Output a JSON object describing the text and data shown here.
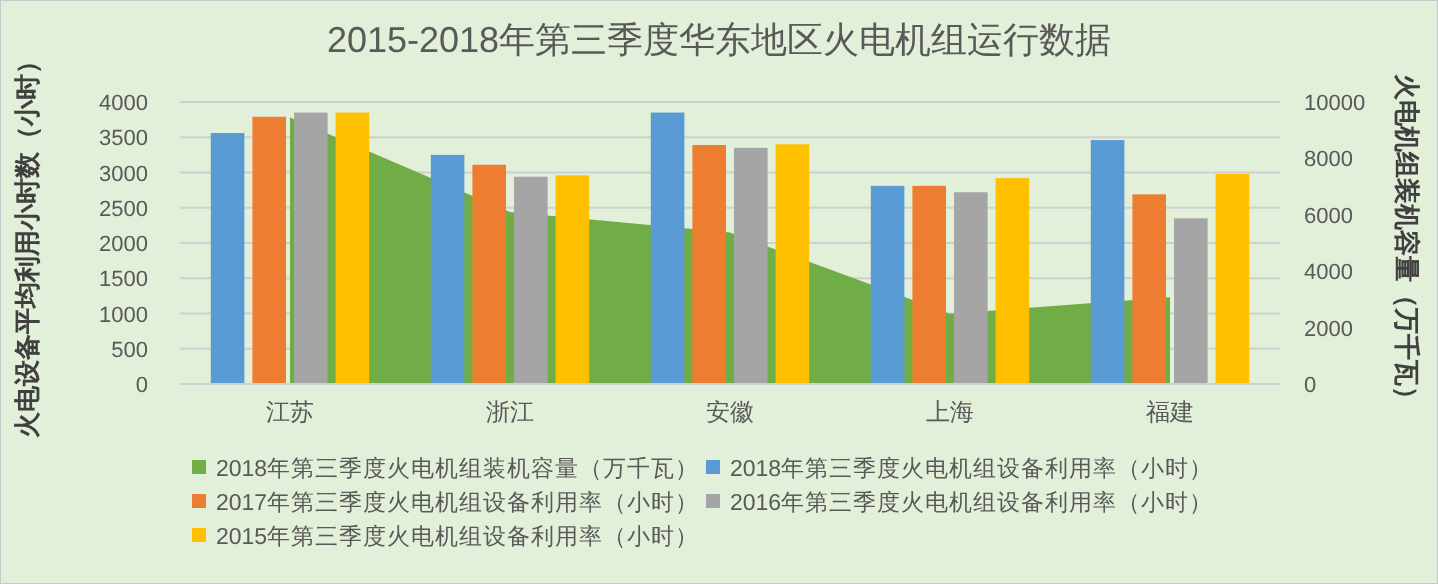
{
  "chart_data": {
    "type": "bar",
    "title": "2015-2018年第三季度华东地区火电机组运行数据",
    "ylabel": "火电设备平均利用小时数（小时）",
    "y2label": "火电机组装机容量（万千瓦）",
    "categories": [
      "江苏",
      "浙江",
      "安徽",
      "上海",
      "福建"
    ],
    "series": [
      {
        "name": "2018年第三季度火电机组装机容量（万千瓦）",
        "type": "area",
        "axis": "y2",
        "color": "#70ad47",
        "values": [
          9450,
          6100,
          5370,
          2490,
          3080
        ]
      },
      {
        "name": "2018年第三季度火电机组设备利用率（小时）",
        "color": "#5b9bd5",
        "values": [
          3560,
          3250,
          3850,
          2810,
          3460
        ]
      },
      {
        "name": "2017年第三季度火电机组设备利用率（小时）",
        "color": "#ed7d31",
        "values": [
          3790,
          3110,
          3390,
          2810,
          2690
        ]
      },
      {
        "name": "2016年第三季度火电机组设备利用率（小时）",
        "color": "#a5a5a5",
        "values": [
          3850,
          2940,
          3350,
          2720,
          2350
        ]
      },
      {
        "name": "2015年第三季度火电机组设备利用率（小时）",
        "color": "#ffc000",
        "values": [
          3850,
          2960,
          3400,
          2920,
          2980
        ]
      }
    ],
    "ylim": [
      0,
      4000
    ],
    "yticks": [
      0,
      500,
      1000,
      1500,
      2000,
      2500,
      3000,
      3500,
      4000
    ],
    "y2lim": [
      0,
      10000
    ],
    "y2ticks": [
      0,
      2000,
      4000,
      6000,
      8000,
      10000
    ],
    "grid": "y",
    "legend": "bottom"
  }
}
